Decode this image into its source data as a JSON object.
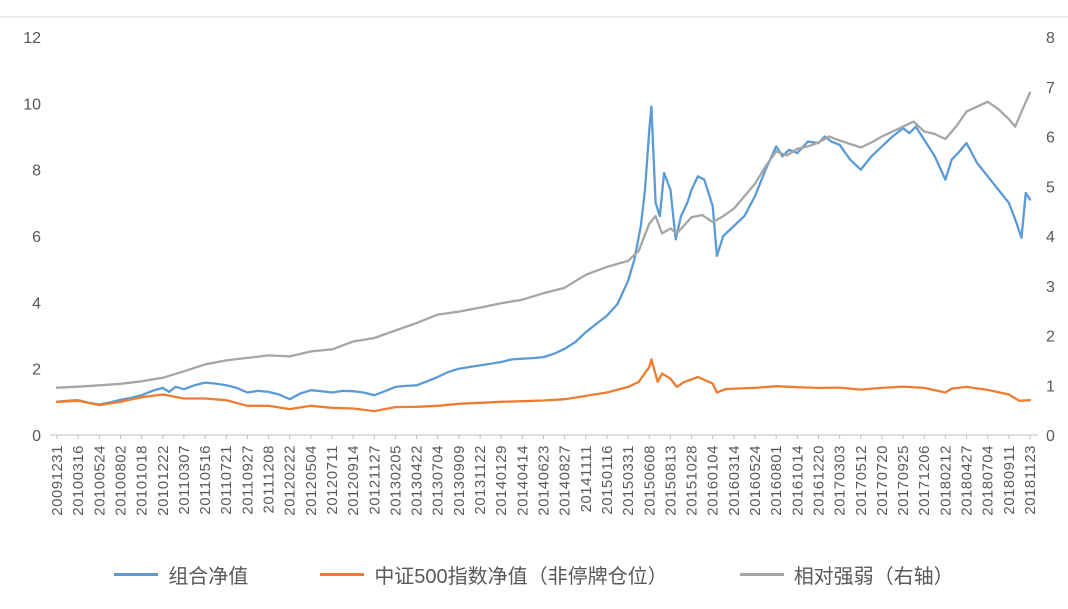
{
  "chart_data": {
    "type": "line",
    "title": "",
    "grid": "none",
    "legend_position": "bottom",
    "x_labels": [
      "20091231",
      "20100316",
      "20100524",
      "20100802",
      "20101018",
      "20101222",
      "20110307",
      "20110516",
      "20110721",
      "20110927",
      "20111208",
      "20120222",
      "20120504",
      "20120711",
      "20120914",
      "20121127",
      "20130205",
      "20130422",
      "20130704",
      "20130909",
      "20131122",
      "20140129",
      "20140414",
      "20140623",
      "20140827",
      "20141111",
      "20150116",
      "20150331",
      "20150608",
      "20150813",
      "20151028",
      "20160104",
      "20160314",
      "20160524",
      "20160801",
      "20161014",
      "20161220",
      "20170303",
      "20170512",
      "20170720",
      "20170925",
      "20171206",
      "20180212",
      "20180427",
      "20180704",
      "20180911",
      "20181123"
    ],
    "left_axis": {
      "min": 0,
      "max": 12,
      "ticks": [
        0,
        2,
        4,
        6,
        8,
        10,
        12
      ]
    },
    "right_axis": {
      "min": 0,
      "max": 8,
      "ticks": [
        0,
        1,
        2,
        3,
        4,
        5,
        6,
        7,
        8
      ]
    },
    "series": [
      {
        "name": "组合净值",
        "axis": "left",
        "color": "#5B9BD5",
        "points": [
          [
            0,
            1.0
          ],
          [
            0.5,
            1.03
          ],
          [
            1,
            1.05
          ],
          [
            1.5,
            0.97
          ],
          [
            2,
            0.92
          ],
          [
            2.5,
            0.98
          ],
          [
            3,
            1.06
          ],
          [
            3.5,
            1.12
          ],
          [
            4,
            1.2
          ],
          [
            4.5,
            1.33
          ],
          [
            5,
            1.42
          ],
          [
            5.3,
            1.3
          ],
          [
            5.6,
            1.45
          ],
          [
            6,
            1.38
          ],
          [
            6.5,
            1.5
          ],
          [
            7,
            1.58
          ],
          [
            7.5,
            1.55
          ],
          [
            8,
            1.5
          ],
          [
            8.5,
            1.42
          ],
          [
            9,
            1.28
          ],
          [
            9.5,
            1.33
          ],
          [
            10,
            1.3
          ],
          [
            10.5,
            1.22
          ],
          [
            11,
            1.08
          ],
          [
            11.5,
            1.25
          ],
          [
            12,
            1.35
          ],
          [
            12.5,
            1.32
          ],
          [
            13,
            1.28
          ],
          [
            13.5,
            1.33
          ],
          [
            14,
            1.32
          ],
          [
            14.5,
            1.28
          ],
          [
            15,
            1.2
          ],
          [
            15.5,
            1.32
          ],
          [
            16,
            1.45
          ],
          [
            16.5,
            1.48
          ],
          [
            17,
            1.5
          ],
          [
            17.5,
            1.62
          ],
          [
            18,
            1.75
          ],
          [
            18.5,
            1.9
          ],
          [
            19,
            2.0
          ],
          [
            19.5,
            2.05
          ],
          [
            20,
            2.1
          ],
          [
            20.5,
            2.15
          ],
          [
            21,
            2.2
          ],
          [
            21.5,
            2.28
          ],
          [
            22,
            2.3
          ],
          [
            22.5,
            2.32
          ],
          [
            23,
            2.35
          ],
          [
            23.5,
            2.45
          ],
          [
            24,
            2.6
          ],
          [
            24.5,
            2.8
          ],
          [
            25,
            3.1
          ],
          [
            25.5,
            3.35
          ],
          [
            26,
            3.6
          ],
          [
            26.5,
            3.95
          ],
          [
            27,
            4.65
          ],
          [
            27.3,
            5.3
          ],
          [
            27.6,
            6.3
          ],
          [
            27.8,
            7.4
          ],
          [
            28,
            9.2
          ],
          [
            28.1,
            9.9
          ],
          [
            28.3,
            7.0
          ],
          [
            28.5,
            6.6
          ],
          [
            28.7,
            7.9
          ],
          [
            29,
            7.4
          ],
          [
            29.25,
            5.9
          ],
          [
            29.5,
            6.6
          ],
          [
            29.8,
            7.0
          ],
          [
            30,
            7.4
          ],
          [
            30.3,
            7.8
          ],
          [
            30.6,
            7.7
          ],
          [
            31,
            6.9
          ],
          [
            31.2,
            5.4
          ],
          [
            31.5,
            6.0
          ],
          [
            32,
            6.3
          ],
          [
            32.5,
            6.6
          ],
          [
            33,
            7.2
          ],
          [
            33.5,
            8.0
          ],
          [
            34,
            8.7
          ],
          [
            34.3,
            8.4
          ],
          [
            34.6,
            8.6
          ],
          [
            35,
            8.5
          ],
          [
            35.5,
            8.85
          ],
          [
            36,
            8.8
          ],
          [
            36.3,
            9.0
          ],
          [
            36.6,
            8.85
          ],
          [
            37,
            8.75
          ],
          [
            37.5,
            8.3
          ],
          [
            38,
            8.0
          ],
          [
            38.5,
            8.4
          ],
          [
            39,
            8.7
          ],
          [
            39.5,
            9.0
          ],
          [
            40,
            9.25
          ],
          [
            40.3,
            9.1
          ],
          [
            40.6,
            9.3
          ],
          [
            41,
            8.9
          ],
          [
            41.5,
            8.4
          ],
          [
            42,
            7.7
          ],
          [
            42.3,
            8.3
          ],
          [
            42.6,
            8.5
          ],
          [
            43,
            8.8
          ],
          [
            43.5,
            8.2
          ],
          [
            44,
            7.8
          ],
          [
            44.5,
            7.4
          ],
          [
            45,
            7.0
          ],
          [
            45.3,
            6.5
          ],
          [
            45.6,
            5.95
          ],
          [
            45.8,
            7.3
          ],
          [
            46,
            7.1
          ]
        ]
      },
      {
        "name": "中证500指数净值（非停牌仓位）",
        "axis": "left",
        "color": "#ED7D31",
        "points": [
          [
            0,
            1.0
          ],
          [
            1,
            1.03
          ],
          [
            2,
            0.9
          ],
          [
            3,
            1.0
          ],
          [
            4,
            1.14
          ],
          [
            5,
            1.22
          ],
          [
            6,
            1.1
          ],
          [
            7,
            1.1
          ],
          [
            8,
            1.05
          ],
          [
            9,
            0.88
          ],
          [
            10,
            0.88
          ],
          [
            11,
            0.78
          ],
          [
            12,
            0.88
          ],
          [
            13,
            0.82
          ],
          [
            14,
            0.8
          ],
          [
            15,
            0.72
          ],
          [
            16,
            0.84
          ],
          [
            17,
            0.85
          ],
          [
            18,
            0.88
          ],
          [
            19,
            0.94
          ],
          [
            20,
            0.97
          ],
          [
            21,
            1.0
          ],
          [
            22,
            1.02
          ],
          [
            23,
            1.04
          ],
          [
            24,
            1.08
          ],
          [
            25,
            1.18
          ],
          [
            26,
            1.28
          ],
          [
            27,
            1.45
          ],
          [
            27.5,
            1.6
          ],
          [
            28,
            2.05
          ],
          [
            28.1,
            2.28
          ],
          [
            28.4,
            1.6
          ],
          [
            28.6,
            1.85
          ],
          [
            29,
            1.7
          ],
          [
            29.3,
            1.45
          ],
          [
            29.6,
            1.58
          ],
          [
            30,
            1.68
          ],
          [
            30.3,
            1.75
          ],
          [
            31,
            1.55
          ],
          [
            31.2,
            1.28
          ],
          [
            31.6,
            1.38
          ],
          [
            32,
            1.4
          ],
          [
            33,
            1.42
          ],
          [
            34,
            1.47
          ],
          [
            35,
            1.44
          ],
          [
            36,
            1.42
          ],
          [
            37,
            1.43
          ],
          [
            38,
            1.37
          ],
          [
            39,
            1.42
          ],
          [
            40,
            1.46
          ],
          [
            41,
            1.42
          ],
          [
            42,
            1.28
          ],
          [
            42.3,
            1.4
          ],
          [
            43,
            1.45
          ],
          [
            44,
            1.36
          ],
          [
            45,
            1.22
          ],
          [
            45.5,
            1.03
          ],
          [
            46,
            1.05
          ]
        ]
      },
      {
        "name": "相对强弱（右轴）",
        "axis": "right",
        "color": "#A6A6A6",
        "points": [
          [
            0,
            0.95
          ],
          [
            1,
            0.97
          ],
          [
            2,
            1.0
          ],
          [
            3,
            1.03
          ],
          [
            4,
            1.08
          ],
          [
            5,
            1.15
          ],
          [
            6,
            1.28
          ],
          [
            7,
            1.42
          ],
          [
            8,
            1.5
          ],
          [
            9,
            1.55
          ],
          [
            10,
            1.6
          ],
          [
            11,
            1.58
          ],
          [
            12,
            1.68
          ],
          [
            13,
            1.72
          ],
          [
            14,
            1.88
          ],
          [
            15,
            1.95
          ],
          [
            16,
            2.1
          ],
          [
            17,
            2.25
          ],
          [
            18,
            2.42
          ],
          [
            19,
            2.48
          ],
          [
            20,
            2.56
          ],
          [
            21,
            2.65
          ],
          [
            22,
            2.72
          ],
          [
            23,
            2.85
          ],
          [
            24,
            2.96
          ],
          [
            25,
            3.22
          ],
          [
            26,
            3.38
          ],
          [
            27,
            3.5
          ],
          [
            27.5,
            3.7
          ],
          [
            28,
            4.25
          ],
          [
            28.3,
            4.4
          ],
          [
            28.6,
            4.05
          ],
          [
            29,
            4.15
          ],
          [
            29.3,
            4.05
          ],
          [
            30,
            4.38
          ],
          [
            30.5,
            4.42
          ],
          [
            31,
            4.28
          ],
          [
            31.5,
            4.4
          ],
          [
            32,
            4.55
          ],
          [
            32.5,
            4.8
          ],
          [
            33,
            5.05
          ],
          [
            33.5,
            5.4
          ],
          [
            34,
            5.7
          ],
          [
            34.5,
            5.62
          ],
          [
            35,
            5.75
          ],
          [
            35.5,
            5.8
          ],
          [
            36,
            5.88
          ],
          [
            36.5,
            6.0
          ],
          [
            37,
            5.92
          ],
          [
            37.5,
            5.85
          ],
          [
            38,
            5.78
          ],
          [
            38.5,
            5.88
          ],
          [
            39,
            6.0
          ],
          [
            39.5,
            6.1
          ],
          [
            40,
            6.2
          ],
          [
            40.5,
            6.3
          ],
          [
            41,
            6.1
          ],
          [
            41.5,
            6.05
          ],
          [
            42,
            5.95
          ],
          [
            42.5,
            6.2
          ],
          [
            43,
            6.5
          ],
          [
            43.5,
            6.6
          ],
          [
            44,
            6.7
          ],
          [
            44.5,
            6.55
          ],
          [
            45,
            6.35
          ],
          [
            45.3,
            6.2
          ],
          [
            45.7,
            6.6
          ],
          [
            46,
            6.88
          ]
        ]
      }
    ]
  }
}
